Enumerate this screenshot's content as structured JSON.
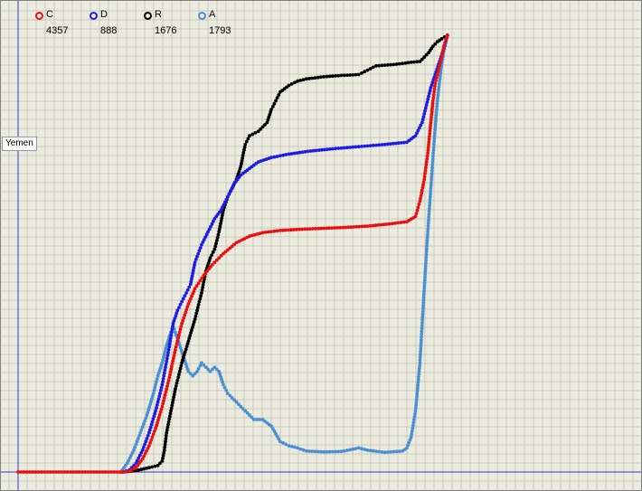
{
  "region_label": "Yemen",
  "colors": {
    "background": "#ecebe0",
    "grid": "#c9c8bd",
    "axis": "#2f39c8"
  },
  "chart_data": {
    "type": "scatter",
    "title": "",
    "xlabel": "",
    "ylabel": "",
    "grid": true,
    "legend": "top-left",
    "x_range": [
      0,
      100
    ],
    "y_range": [
      0,
      100
    ],
    "series": [
      {
        "key": "c",
        "name": "C",
        "count": "4357",
        "color": "#e81010",
        "points": [
          [
            0,
            0
          ],
          [
            20,
            0
          ],
          [
            24,
            0
          ],
          [
            25.5,
            0.2
          ],
          [
            27,
            1
          ],
          [
            28.5,
            3
          ],
          [
            30,
            6
          ],
          [
            31.5,
            10
          ],
          [
            33,
            15
          ],
          [
            34.5,
            21
          ],
          [
            36,
            28
          ],
          [
            37.5,
            34
          ],
          [
            39,
            38.5
          ],
          [
            40.5,
            42
          ],
          [
            42.5,
            45
          ],
          [
            44.5,
            47.5
          ],
          [
            47,
            50
          ],
          [
            50,
            52.5
          ],
          [
            53,
            54
          ],
          [
            56,
            54.8
          ],
          [
            60,
            55.3
          ],
          [
            65,
            55.6
          ],
          [
            70,
            55.8
          ],
          [
            75,
            56
          ],
          [
            80,
            56.3
          ],
          [
            85,
            56.8
          ],
          [
            89,
            57.3
          ],
          [
            91,
            58.5
          ],
          [
            92,
            62
          ],
          [
            93,
            67
          ],
          [
            93.8,
            73
          ],
          [
            94.5,
            80
          ],
          [
            95,
            85
          ],
          [
            95.5,
            89
          ],
          [
            96,
            91
          ],
          [
            96.5,
            93
          ],
          [
            97,
            95
          ],
          [
            97.5,
            97.5
          ],
          [
            98,
            99
          ],
          [
            98.3,
            100
          ]
        ]
      },
      {
        "key": "d",
        "name": "D",
        "count": "888",
        "color": "#1c1ce6",
        "points": [
          [
            24,
            0
          ],
          [
            25.5,
            0.5
          ],
          [
            27,
            2
          ],
          [
            28.5,
            5
          ],
          [
            30,
            9
          ],
          [
            31.5,
            14
          ],
          [
            33,
            20
          ],
          [
            34.5,
            28
          ],
          [
            35.5,
            34
          ],
          [
            36.5,
            37
          ],
          [
            37.5,
            39
          ],
          [
            38.5,
            41
          ],
          [
            39.5,
            43
          ],
          [
            40.5,
            48
          ],
          [
            42,
            52
          ],
          [
            43.5,
            55
          ],
          [
            45,
            58
          ],
          [
            46.5,
            60
          ],
          [
            48,
            63
          ],
          [
            49.5,
            66
          ],
          [
            51,
            68
          ],
          [
            53,
            69.5
          ],
          [
            55,
            71
          ],
          [
            58,
            72
          ],
          [
            62,
            72.8
          ],
          [
            67,
            73.5
          ],
          [
            72,
            74
          ],
          [
            78,
            74.5
          ],
          [
            84,
            75
          ],
          [
            89,
            75.5
          ],
          [
            91,
            77
          ],
          [
            92.5,
            80
          ],
          [
            93.5,
            84
          ],
          [
            94.5,
            88
          ],
          [
            95.5,
            91
          ],
          [
            96.5,
            94
          ],
          [
            97.5,
            97
          ],
          [
            98.3,
            100
          ]
        ]
      },
      {
        "key": "r",
        "name": "R",
        "count": "1676",
        "color": "#000000",
        "points": [
          [
            24,
            0
          ],
          [
            27,
            0.3
          ],
          [
            30,
            1
          ],
          [
            32,
            1.5
          ],
          [
            33,
            2.5
          ],
          [
            33.5,
            5
          ],
          [
            34,
            9
          ],
          [
            35,
            14
          ],
          [
            36,
            19
          ],
          [
            37.5,
            25
          ],
          [
            39,
            30
          ],
          [
            40.5,
            35
          ],
          [
            42,
            41
          ],
          [
            43,
            46
          ],
          [
            44,
            49
          ],
          [
            45,
            51
          ],
          [
            46,
            55
          ],
          [
            47,
            60
          ],
          [
            48,
            63
          ],
          [
            49,
            65
          ],
          [
            50,
            67
          ],
          [
            51,
            70
          ],
          [
            52,
            75
          ],
          [
            53,
            77
          ],
          [
            55,
            78
          ],
          [
            57,
            80
          ],
          [
            58,
            83
          ],
          [
            59,
            85
          ],
          [
            60,
            87
          ],
          [
            62,
            88.5
          ],
          [
            64,
            89.5
          ],
          [
            66,
            90
          ],
          [
            70,
            90.5
          ],
          [
            74,
            90.8
          ],
          [
            78,
            91
          ],
          [
            80,
            92
          ],
          [
            82,
            93
          ],
          [
            86,
            93.3
          ],
          [
            90,
            93.8
          ],
          [
            92,
            94
          ],
          [
            93,
            95
          ],
          [
            94,
            96
          ],
          [
            95,
            97.5
          ],
          [
            96,
            98.5
          ],
          [
            97,
            99.2
          ],
          [
            98.3,
            100
          ]
        ]
      },
      {
        "key": "a",
        "name": "A",
        "count": "1793",
        "color": "#4a8fd1",
        "points": [
          [
            23.5,
            0
          ],
          [
            25,
            2
          ],
          [
            26.5,
            5
          ],
          [
            28,
            9
          ],
          [
            29.5,
            13
          ],
          [
            31,
            18
          ],
          [
            32,
            22
          ],
          [
            33,
            25
          ],
          [
            34,
            29
          ],
          [
            35,
            32
          ],
          [
            35.5,
            33.5
          ],
          [
            36,
            32
          ],
          [
            37,
            29
          ],
          [
            38,
            26
          ],
          [
            39,
            23
          ],
          [
            40,
            22
          ],
          [
            41,
            23
          ],
          [
            42,
            25
          ],
          [
            43,
            24
          ],
          [
            44,
            23
          ],
          [
            45,
            24
          ],
          [
            46,
            23
          ],
          [
            47,
            20
          ],
          [
            48,
            18
          ],
          [
            50,
            16
          ],
          [
            52,
            14
          ],
          [
            54,
            12
          ],
          [
            56,
            12
          ],
          [
            58,
            10.5
          ],
          [
            60,
            7
          ],
          [
            62,
            6
          ],
          [
            64,
            5.5
          ],
          [
            66,
            4.8
          ],
          [
            70,
            4.6
          ],
          [
            74,
            4.7
          ],
          [
            78,
            5.5
          ],
          [
            80,
            5
          ],
          [
            84,
            4.5
          ],
          [
            88,
            4.8
          ],
          [
            89,
            5.5
          ],
          [
            90,
            8
          ],
          [
            91,
            14
          ],
          [
            92,
            25
          ],
          [
            93,
            42
          ],
          [
            93.8,
            55
          ],
          [
            94.5,
            65
          ],
          [
            95.2,
            75
          ],
          [
            96,
            85
          ],
          [
            96.8,
            92
          ],
          [
            97.6,
            97
          ],
          [
            98.3,
            100
          ]
        ]
      }
    ]
  }
}
